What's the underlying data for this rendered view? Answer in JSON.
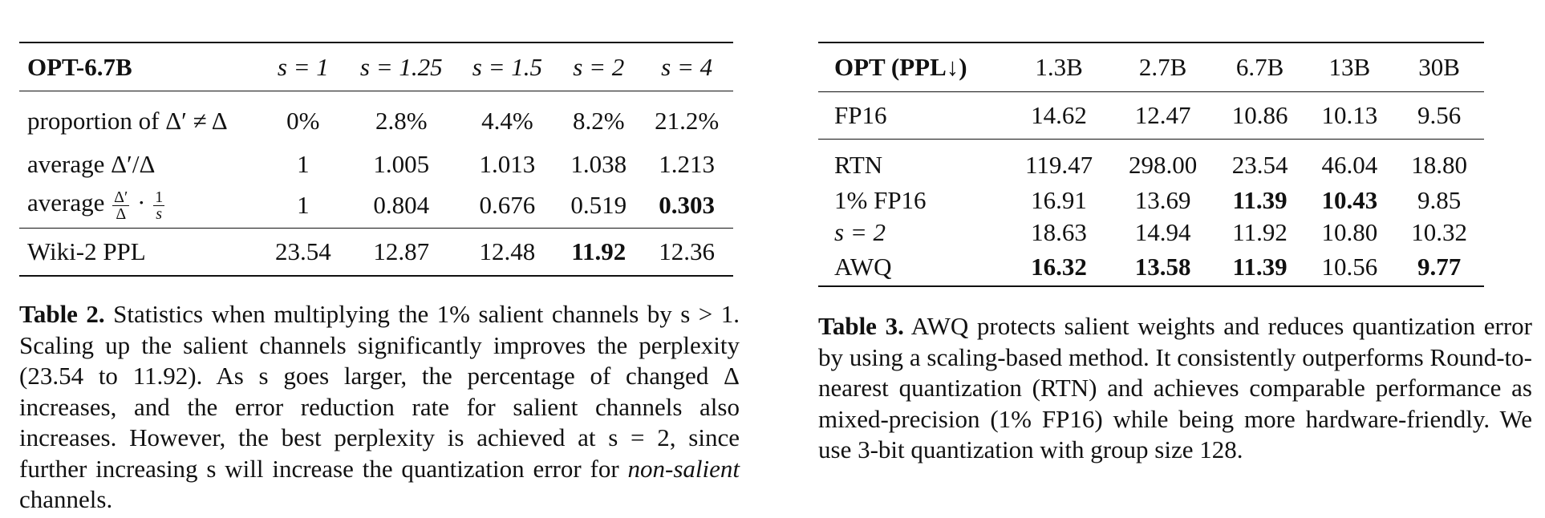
{
  "table2": {
    "header": [
      "OPT-6.7B",
      "s = 1",
      "s = 1.25",
      "s = 1.5",
      "s = 2",
      "s = 4"
    ],
    "rows": [
      {
        "label": "proportion of Δ′ ≠ Δ",
        "values": [
          "0%",
          "2.8%",
          "4.4%",
          "8.2%",
          "21.2%"
        ],
        "bold": []
      },
      {
        "label": "average Δ′/Δ",
        "values": [
          "1",
          "1.005",
          "1.013",
          "1.038",
          "1.213"
        ],
        "bold": []
      },
      {
        "label": "average",
        "values": [
          "1",
          "0.804",
          "0.676",
          "0.519",
          "0.303"
        ],
        "bold": [
          4
        ]
      },
      {
        "label": "Wiki-2 PPL",
        "values": [
          "23.54",
          "12.87",
          "12.48",
          "11.92",
          "12.36"
        ],
        "bold": [
          3
        ]
      }
    ],
    "row3_fraction": {
      "num": "Δ′",
      "den": "Δ",
      "num2": "1",
      "den2": "s"
    },
    "caption_label": "Table 2.",
    "caption_part1": "Statistics when multiplying the 1% salient channels by s > 1. Scaling up the salient channels significantly improves the perplexity (23.54 to 11.92). As s goes larger, the percentage of changed Δ increases, and the error reduction rate for salient channels also increases. However, the best perplexity is achieved at s = 2, since further increasing s will increase the quantization error for",
    "caption_em": "non-salient",
    "caption_part2": "channels."
  },
  "table3": {
    "header": [
      "OPT (PPL↓)",
      "1.3B",
      "2.7B",
      "6.7B",
      "13B",
      "30B"
    ],
    "fp16_row": {
      "label": "FP16",
      "values": [
        "14.62",
        "12.47",
        "10.86",
        "10.13",
        "9.56"
      ]
    },
    "rows": [
      {
        "label": "RTN",
        "values": [
          "119.47",
          "298.00",
          "23.54",
          "46.04",
          "18.80"
        ],
        "bold": []
      },
      {
        "label": "1% FP16",
        "values": [
          "16.91",
          "13.69",
          "11.39",
          "10.43",
          "9.85"
        ],
        "bold": [
          2,
          3
        ]
      },
      {
        "label": "s = 2",
        "values": [
          "18.63",
          "14.94",
          "11.92",
          "10.80",
          "10.32"
        ],
        "bold": []
      },
      {
        "label": "AWQ",
        "values": [
          "16.32",
          "13.58",
          "11.39",
          "10.56",
          "9.77"
        ],
        "bold": [
          0,
          1,
          2,
          4
        ]
      }
    ],
    "caption_label": "Table 3.",
    "caption_text": "AWQ protects salient weights and reduces quantization error by using a scaling-based method. It consistently outperforms Round-to-nearest quantization (RTN) and achieves comparable performance as mixed-precision (1% FP16) while being more hardware-friendly. We use 3-bit quantization with group size 128."
  }
}
